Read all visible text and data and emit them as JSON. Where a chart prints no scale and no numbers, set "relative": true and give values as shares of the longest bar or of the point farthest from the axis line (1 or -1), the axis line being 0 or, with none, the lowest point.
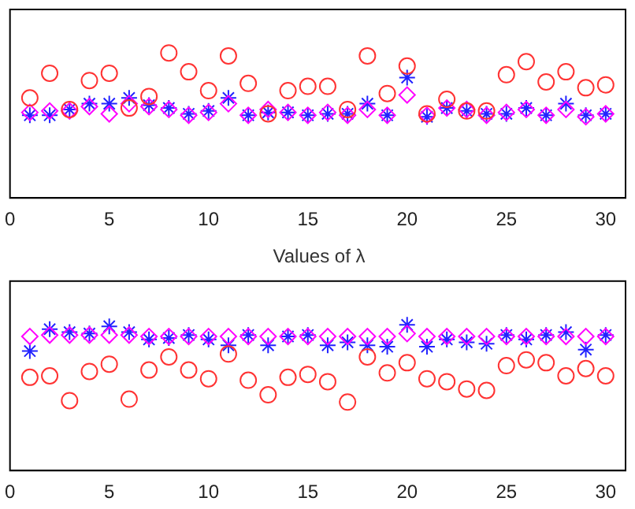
{
  "chart_data": [
    {
      "type": "scatter",
      "relative": true,
      "x": [
        1,
        2,
        3,
        4,
        5,
        6,
        7,
        8,
        9,
        10,
        11,
        12,
        13,
        14,
        15,
        16,
        17,
        18,
        19,
        20,
        21,
        22,
        23,
        24,
        25,
        26,
        27,
        28,
        29,
        30
      ],
      "xlim": [
        0,
        31
      ],
      "xticks": [
        0,
        5,
        10,
        15,
        20,
        25,
        30
      ],
      "grid": false,
      "legend": false,
      "series": [
        {
          "color": "#ff3333",
          "marker": "circle",
          "values": [
            0.69,
            0.86,
            0.61,
            0.81,
            0.86,
            0.62,
            0.7,
            1,
            0.87,
            0.74,
            0.98,
            0.79,
            0.58,
            0.74,
            0.77,
            0.77,
            0.61,
            0.98,
            0.72,
            0.91,
            0.58,
            0.68,
            0.6,
            0.6,
            0.85,
            0.94,
            0.8,
            0.87,
            0.76,
            0.78
          ]
        },
        {
          "color": "#ff00ff",
          "marker": "diamond",
          "values": [
            0.59,
            0.6,
            0.6,
            0.63,
            0.58,
            0.65,
            0.63,
            0.61,
            0.57,
            0.59,
            0.65,
            0.57,
            0.61,
            0.59,
            0.57,
            0.59,
            0.57,
            0.61,
            0.57,
            0.71,
            0.57,
            0.62,
            0.61,
            0.57,
            0.59,
            0.61,
            0.57,
            0.61,
            0.56,
            0.58
          ]
        },
        {
          "color": "#2222ff",
          "marker": "cross",
          "values": [
            0.57,
            0.57,
            0.61,
            0.65,
            0.65,
            0.69,
            0.64,
            0.62,
            0.58,
            0.6,
            0.69,
            0.57,
            0.59,
            0.59,
            0.57,
            0.58,
            0.58,
            0.65,
            0.57,
            0.83,
            0.56,
            0.62,
            0.6,
            0.58,
            0.58,
            0.62,
            0.57,
            0.65,
            0.57,
            0.58
          ]
        }
      ]
    },
    {
      "type": "scatter",
      "relative": true,
      "title": "Values of λ",
      "x": [
        1,
        2,
        3,
        4,
        5,
        6,
        7,
        8,
        9,
        10,
        11,
        12,
        13,
        14,
        15,
        16,
        17,
        18,
        19,
        20,
        21,
        22,
        23,
        24,
        25,
        26,
        27,
        28,
        29,
        30
      ],
      "xlim": [
        0,
        31
      ],
      "xticks": [
        0,
        5,
        10,
        15,
        20,
        25,
        30
      ],
      "grid": false,
      "legend": false,
      "series": [
        {
          "color": "#ff3333",
          "marker": "circle",
          "values": [
            0.64,
            0.65,
            0.48,
            0.68,
            0.73,
            0.49,
            0.69,
            0.78,
            0.69,
            0.63,
            0.8,
            0.62,
            0.52,
            0.64,
            0.66,
            0.61,
            0.47,
            0.78,
            0.67,
            0.74,
            0.63,
            0.61,
            0.56,
            0.55,
            0.72,
            0.76,
            0.74,
            0.65,
            0.7,
            0.65
          ]
        },
        {
          "color": "#ff00ff",
          "marker": "diamond",
          "values": [
            0.92,
            0.93,
            0.93,
            0.93,
            0.93,
            0.93,
            0.92,
            0.92,
            0.92,
            0.92,
            0.92,
            0.92,
            0.92,
            0.92,
            0.92,
            0.92,
            0.92,
            0.92,
            0.92,
            0.94,
            0.92,
            0.92,
            0.92,
            0.92,
            0.92,
            0.92,
            0.92,
            0.92,
            0.92,
            0.92
          ]
        },
        {
          "color": "#2222ff",
          "marker": "cross",
          "values": [
            0.82,
            0.97,
            0.95,
            0.94,
            0.99,
            0.95,
            0.9,
            0.91,
            0.93,
            0.9,
            0.86,
            0.93,
            0.86,
            0.92,
            0.93,
            0.86,
            0.88,
            0.86,
            0.85,
            1,
            0.85,
            0.9,
            0.88,
            0.87,
            0.93,
            0.9,
            0.93,
            0.95,
            0.83,
            0.93
          ]
        }
      ]
    }
  ]
}
